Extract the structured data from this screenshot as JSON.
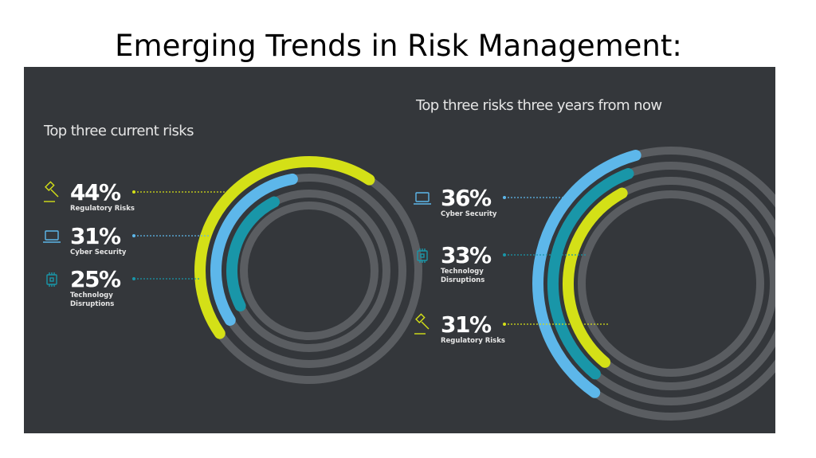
{
  "page": {
    "title": "Emerging Trends in Risk Management:"
  },
  "colors": {
    "background": "#34373b",
    "track": "#5a5d61",
    "regulatory": "#d4e017",
    "cyber": "#5db7ea",
    "technology": "#1996a8",
    "text": "#ffffff"
  },
  "chart_data": [
    {
      "type": "radial-bar",
      "title": "Top three current risks",
      "categories": [
        "Regulatory Risks",
        "Cyber Security",
        "Technology Disruptions"
      ],
      "values": [
        44,
        31,
        25
      ],
      "unit": "%",
      "labels": [
        {
          "value": "44%",
          "lines": [
            "Regulatory Risks"
          ],
          "icon": "gavel-icon",
          "color": "#d4e017"
        },
        {
          "value": "31%",
          "lines": [
            "Cyber Security"
          ],
          "icon": "laptop-icon",
          "color": "#5db7ea"
        },
        {
          "value": "25%",
          "lines": [
            "Technology",
            "Disruptions"
          ],
          "icon": "chip-icon",
          "color": "#1996a8"
        }
      ]
    },
    {
      "type": "radial-bar",
      "title": "Top three risks three years from now",
      "categories": [
        "Cyber Security",
        "Technology Disruptions",
        "Regulatory Risks"
      ],
      "values": [
        36,
        33,
        31
      ],
      "unit": "%",
      "labels": [
        {
          "value": "36%",
          "lines": [
            "Cyber Security"
          ],
          "icon": "laptop-icon",
          "color": "#5db7ea"
        },
        {
          "value": "33%",
          "lines": [
            "Technology",
            "Disruptions"
          ],
          "icon": "chip-icon",
          "color": "#1996a8"
        },
        {
          "value": "31%",
          "lines": [
            "Regulatory Risks"
          ],
          "icon": "gavel-icon",
          "color": "#d4e017"
        }
      ]
    }
  ]
}
